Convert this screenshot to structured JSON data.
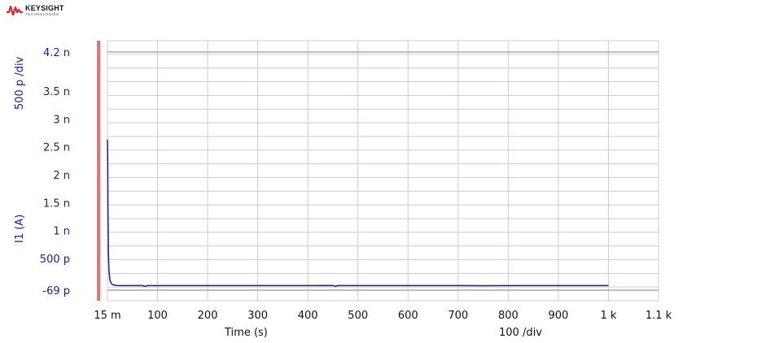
{
  "brand": {
    "name": "KEYSIGHT",
    "subtitle": "TECHNOLOGIES",
    "logo_color": "#e0242b"
  },
  "chart_data": {
    "type": "line",
    "title": "",
    "xlabel": "Time (s)",
    "x_scale_label": "100  /div",
    "ylabel": "I1 (A)",
    "y_scale_label": "500 p /div",
    "xlim": [
      0.015,
      1100
    ],
    "ylim": [
      -6.9e-11,
      4.2e-09
    ],
    "x_tick_values": [
      0.015,
      100,
      200,
      300,
      400,
      500,
      600,
      700,
      800,
      900,
      1000,
      1100
    ],
    "x_tick_labels": [
      "15 m",
      "100",
      "200",
      "300",
      "400",
      "500",
      "600",
      "700",
      "800",
      "900",
      "1 k",
      "1.1 k"
    ],
    "y_tick_values": [
      -6.9e-11,
      5e-10,
      1e-09,
      1.5e-09,
      2e-09,
      2.5e-09,
      3e-09,
      3.5e-09,
      4.2e-09
    ],
    "y_tick_labels": [
      "-69 p",
      "500 p",
      "1 n",
      "1.5 n",
      "2 n",
      "2.5 n",
      "3 n",
      "3.5 n",
      "4.2 n"
    ],
    "grid": true,
    "colors": {
      "series": "#1a1a9c",
      "axis_text": "#1a1a9c",
      "grid": "#cccccc",
      "marker_bar": "#e57373"
    },
    "series": [
      {
        "values_x": [
          0.015,
          0.5,
          1,
          2,
          3,
          4,
          5,
          6,
          8,
          10,
          12,
          15,
          20,
          25,
          30,
          40,
          50,
          60,
          70,
          75,
          80,
          100,
          150,
          200,
          250,
          300,
          350,
          400,
          450,
          455,
          460,
          500,
          550,
          600,
          650,
          700,
          750,
          800,
          850,
          900,
          950,
          1000
        ],
        "values_y": [
          2.63e-09,
          2.2e-09,
          1.4e-09,
          6e-10,
          3e-10,
          1.8e-10,
          1.2e-10,
          8e-11,
          5e-11,
          3.5e-11,
          2.5e-11,
          2e-11,
          1.5e-11,
          1.2e-11,
          1.2e-11,
          1.2e-11,
          1.2e-11,
          1.2e-11,
          1.2e-11,
          0.0,
          1.2e-11,
          1.2e-11,
          1.3e-11,
          1.2e-11,
          1.2e-11,
          1.2e-11,
          1.3e-11,
          1.2e-11,
          1.4e-11,
          2e-12,
          1.2e-11,
          1.2e-11,
          1.2e-11,
          1.2e-11,
          1.2e-11,
          1.2e-11,
          1.1e-11,
          1.2e-11,
          1.2e-11,
          1.2e-11,
          1.2e-11,
          1.2e-11
        ]
      }
    ]
  }
}
